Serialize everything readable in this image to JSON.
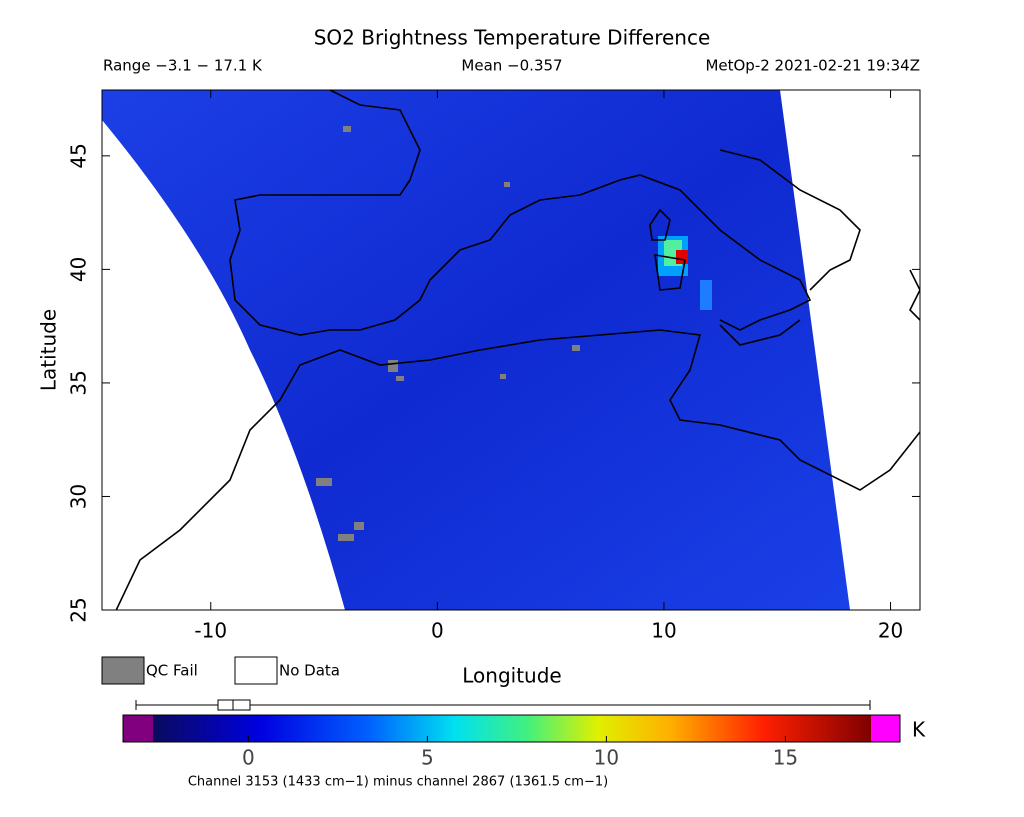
{
  "chart_data": {
    "type": "map",
    "title": "SO2 Brightness Temperature Difference",
    "range_text": "Range −3.1 − 17.1 K",
    "mean_text": "Mean −0.357",
    "source_text": "MetOp-2 2021-02-21 19:34Z",
    "x_label": "Longitude",
    "y_label": "Latitude",
    "xlim": [
      -14.8,
      21.3
    ],
    "ylim": [
      25,
      47.9
    ],
    "xticks": [
      -10,
      0,
      10,
      20
    ],
    "yticks": [
      25,
      30,
      35,
      40,
      45
    ],
    "legend": [
      "QC Fail",
      "No Data"
    ],
    "colorbar": {
      "lim": [
        -3.5,
        18.2
      ],
      "ticks": [
        0,
        5,
        10,
        15
      ],
      "unit": "K"
    },
    "footnote": "Channel 3153 (1433 cm−1) minus channel 2867 (1361.5 cm−1)"
  }
}
